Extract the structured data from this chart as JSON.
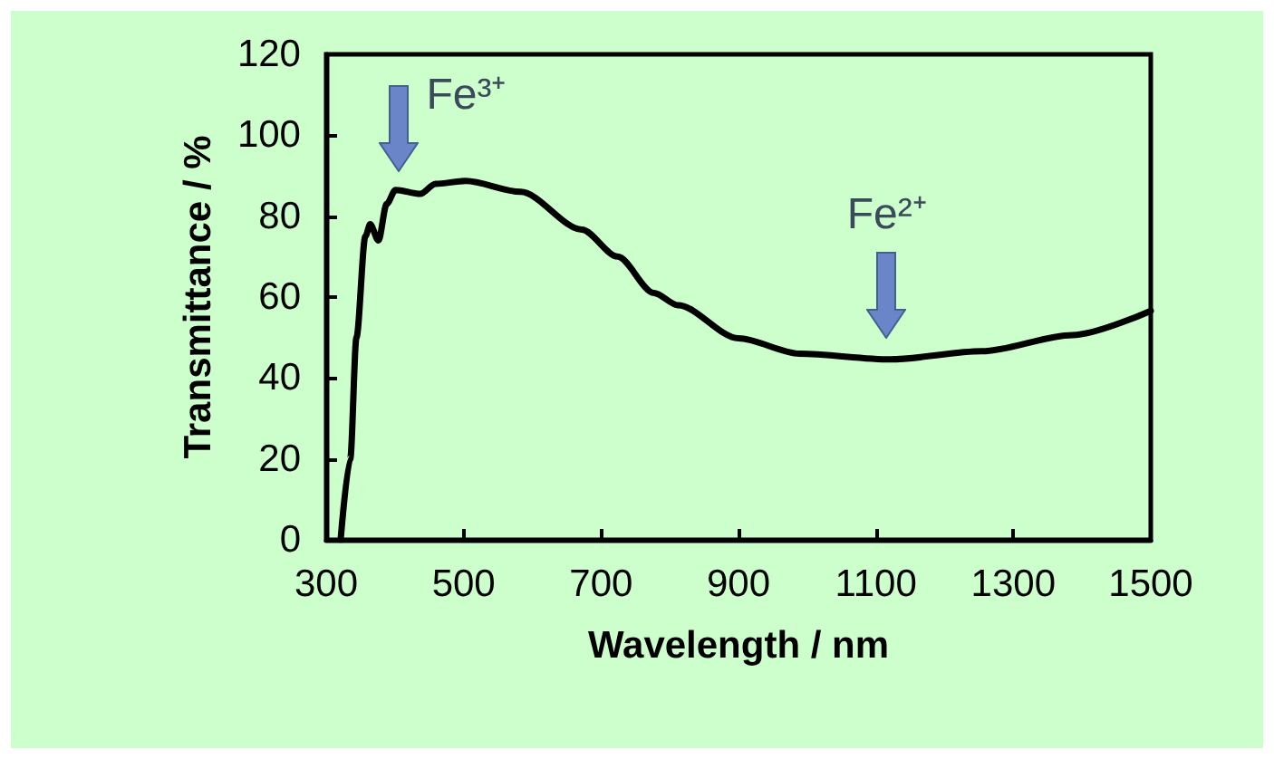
{
  "chart_data": {
    "type": "line",
    "xlabel": "Wavelength / nm",
    "ylabel": "Transmittance / %",
    "x": [
      321,
      335,
      344,
      357,
      364,
      376,
      388,
      401,
      437,
      459,
      503,
      583,
      672,
      724,
      777,
      812,
      900,
      989,
      1121,
      1254,
      1386,
      1500
    ],
    "series": [
      {
        "color": "#000000",
        "values": [
          0,
          20,
          50,
          75,
          78,
          74,
          83,
          86.5,
          85.5,
          88,
          88.7,
          86,
          76.7,
          70,
          61,
          58,
          49.8,
          46,
          44.6,
          46.6,
          50.6,
          56.6
        ]
      }
    ],
    "xlim": [
      300,
      1500
    ],
    "xticks": [
      300,
      500,
      700,
      900,
      1100,
      1300,
      1500
    ],
    "ylim": [
      0,
      120
    ],
    "yticks": [
      0,
      20,
      40,
      60,
      80,
      100,
      120
    ],
    "grid": false,
    "marker": "none",
    "line_style": "solid",
    "annotations": [
      {
        "text": "Fe³⁺",
        "x": 406,
        "y": 86
      },
      {
        "text": "Fe²⁺",
        "x": 1116,
        "y": 45
      }
    ]
  }
}
